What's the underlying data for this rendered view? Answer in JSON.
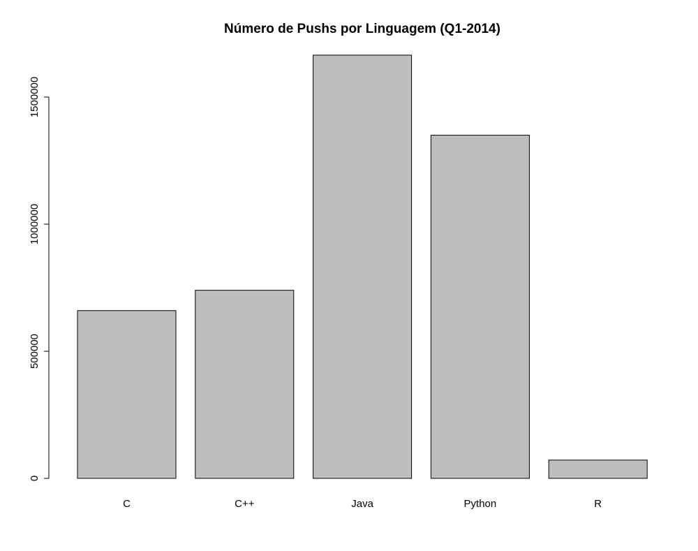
{
  "chart_data": {
    "type": "bar",
    "title": "Número de Pushs por Linguagem (Q1-2014)",
    "xlabel": "",
    "ylabel": "",
    "categories": [
      "C",
      "C++",
      "Java",
      "Python",
      "R"
    ],
    "values": [
      660000,
      740000,
      1665000,
      1350000,
      72000
    ],
    "ylim": [
      0,
      1665000
    ],
    "yticks": [
      0,
      500000,
      1000000,
      1500000
    ],
    "ytick_labels": [
      "0",
      "500000",
      "1000000",
      "1500000"
    ],
    "grid": false,
    "legend": "none",
    "colors": {
      "bar_fill": "#bebebe",
      "bar_stroke": "#000000",
      "axis": "#000000",
      "background": "#ffffff"
    }
  }
}
